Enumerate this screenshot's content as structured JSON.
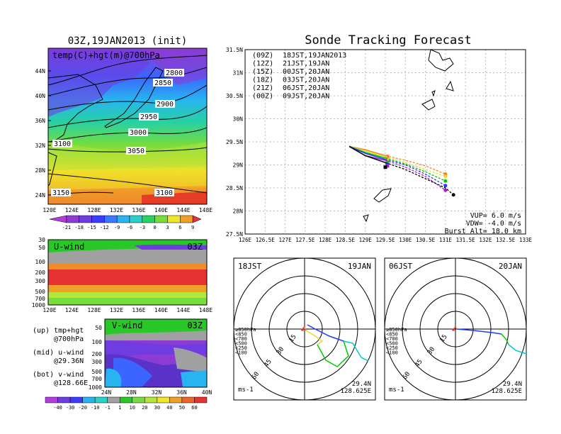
{
  "left_panel": {
    "title": "03Z,19JAN2013 (init)",
    "map_label": "temp(C)+hgt(m)@700hPa",
    "lat_ticks": [
      "44N",
      "40N",
      "36N",
      "32N",
      "28N",
      "24N"
    ],
    "lon_ticks": [
      "120E",
      "124E",
      "128E",
      "132E",
      "136E",
      "140E",
      "144E",
      "148E"
    ],
    "contours": [
      "2800",
      "2850",
      "2900",
      "2950",
      "3000",
      "3050",
      "3100",
      "3100",
      "3150"
    ],
    "temp_colorbar": [
      "-21",
      "-18",
      "-15",
      "-12",
      "-9",
      "-6",
      "-3",
      "0",
      "3",
      "6",
      "9"
    ]
  },
  "uwind_panel": {
    "label": "U-wind",
    "time": "03Z",
    "p_ticks": [
      "30",
      "50",
      "100",
      "200",
      "300",
      "500",
      "700",
      "1000"
    ],
    "lon_ticks": [
      "120E",
      "124E",
      "128E",
      "132E",
      "136E",
      "140E",
      "144E",
      "148E"
    ]
  },
  "vwind_panel": {
    "label": "V-wind",
    "time": "03Z",
    "p_ticks": [
      "50",
      "100",
      "200",
      "300",
      "500",
      "700",
      "1000"
    ],
    "lat_ticks": [
      "24N",
      "28N",
      "32N",
      "36N",
      "40N"
    ]
  },
  "legend_text": {
    "up": "(up) tmp+hgt",
    "up2": "@700hPa",
    "mid": "(mid) u-wind",
    "mid2": "@29.36N",
    "bot": "(bot) v-wind",
    "bot2": "@128.66E"
  },
  "wind_colorbar": [
    "-40",
    "-30",
    "-20",
    "-10",
    "-1",
    "1",
    "10",
    "20",
    "30",
    "40",
    "50",
    "60"
  ],
  "tracking": {
    "title": "Sonde Tracking Forecast",
    "lat_ticks": [
      "31.5N",
      "31N",
      "30.5N",
      "30N",
      "29.5N",
      "29N",
      "28.5N",
      "28N",
      "27.5N"
    ],
    "lon_ticks": [
      "126E",
      "126.5E",
      "127E",
      "127.5E",
      "128E",
      "128.5E",
      "129E",
      "129.5E",
      "130E",
      "130.5E",
      "131E",
      "131.5E",
      "132E",
      "132.5E",
      "133E"
    ],
    "legend": [
      {
        "code": "(09Z)",
        "time": "18JST,19JAN2013",
        "color": "#000000"
      },
      {
        "code": "(12Z)",
        "time": "21JST,19JAN",
        "color": "#a020c8"
      },
      {
        "code": "(15Z)",
        "time": "00JST,20JAN",
        "color": "#1e3cff"
      },
      {
        "code": "(18Z)",
        "time": "03JST,20JAN",
        "color": "#00c800"
      },
      {
        "code": "(21Z)",
        "time": "06JST,20JAN",
        "color": "#e6dc32"
      },
      {
        "code": "(00Z)",
        "time": "09JST,20JAN",
        "color": "#f08228"
      }
    ],
    "vup": "VUP= 6.0 m/s",
    "vdw": "VDW= -4.0 m/s",
    "burst": "Burst Alt= 18.0 km"
  },
  "polar_left": {
    "time": "18JST",
    "date": "19JAN",
    "units": "ms-1",
    "lat": "29.4N",
    "lon": "128.625E",
    "ring_labels": [
      "15",
      "30",
      "45",
      "60"
    ],
    "levels": [
      "≥850hPa",
      "<850",
      "<700",
      "<500",
      "<250",
      "<100"
    ]
  },
  "polar_right": {
    "time": "06JST",
    "date": "20JAN",
    "units": "ms-1",
    "lat": "29.4N",
    "lon": "128.625E",
    "ring_labels": [
      "15",
      "30",
      "45",
      "60"
    ],
    "levels": [
      "≥850hPa",
      "<850",
      "<700",
      "<500",
      "<250",
      "<100"
    ]
  },
  "chart_data": {
    "type": "line",
    "title": "Sonde Tracking Forecast",
    "xlim": [
      126,
      133
    ],
    "ylim": [
      27.5,
      31.5
    ],
    "series": [
      {
        "name": "(09Z) 18JST,19JAN2013",
        "color": "#000000",
        "x": [
          128.6,
          129.0,
          129.5,
          130.0,
          130.5,
          131.0,
          131.2
        ],
        "y": [
          29.4,
          29.2,
          29.05,
          28.9,
          28.7,
          28.5,
          28.35
        ],
        "launch": [
          129.5,
          28.95
        ]
      },
      {
        "name": "(12Z) 21JST,19JAN",
        "color": "#a020c8",
        "x": [
          128.6,
          129.0,
          129.5,
          130.0,
          130.5,
          131.0
        ],
        "y": [
          29.4,
          29.2,
          29.1,
          28.95,
          28.75,
          28.45
        ],
        "launch": [
          129.55,
          28.98
        ]
      },
      {
        "name": "(15Z) 00JST,20JAN",
        "color": "#1e3cff",
        "x": [
          128.6,
          129.0,
          129.5,
          130.0,
          130.5,
          131.0
        ],
        "y": [
          29.4,
          29.25,
          29.12,
          29.0,
          28.8,
          28.55
        ],
        "launch": [
          129.55,
          29.0
        ]
      },
      {
        "name": "(18Z) 03JST,20JAN",
        "color": "#00c800",
        "x": [
          128.6,
          129.0,
          129.5,
          130.0,
          130.5,
          131.0
        ],
        "y": [
          29.4,
          29.27,
          29.15,
          29.02,
          28.85,
          28.65
        ],
        "launch": [
          129.55,
          29.05
        ]
      },
      {
        "name": "(21Z) 06JST,20JAN",
        "color": "#e6dc32",
        "x": [
          128.6,
          129.0,
          129.5,
          130.0,
          130.5,
          131.0
        ],
        "y": [
          29.4,
          29.3,
          29.18,
          29.05,
          28.9,
          28.75
        ],
        "launch": [
          129.55,
          29.1
        ]
      },
      {
        "name": "(00Z) 09JST,20JAN",
        "color": "#f08228",
        "x": [
          128.6,
          129.0,
          129.5,
          130.0,
          130.5,
          131.0
        ],
        "y": [
          29.4,
          29.33,
          29.2,
          29.1,
          28.98,
          28.8
        ],
        "launch": [
          129.55,
          29.18
        ]
      }
    ]
  }
}
